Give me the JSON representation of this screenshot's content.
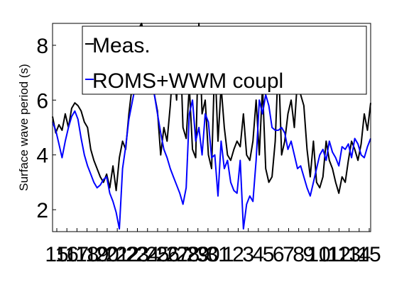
{
  "chart_data": {
    "type": "line",
    "title": "",
    "xlabel": "",
    "ylabel": "Surface wave period (s)",
    "ylim": [
      1.2,
      8.8
    ],
    "xlim": [
      0,
      100
    ],
    "yticks": [
      2,
      4,
      6,
      8
    ],
    "x_tick_labels": [
      "15",
      "16",
      "17",
      "18",
      "19",
      "20",
      "21",
      "22",
      "23",
      "24",
      "25",
      "26",
      "27",
      "28",
      "29",
      "30",
      "31",
      "1",
      "2",
      "3",
      "4",
      "5",
      "6",
      "7",
      "8",
      "9",
      "10",
      "11",
      "12",
      "13",
      "14",
      "15"
    ],
    "legend": {
      "position": "top",
      "entries": [
        "Meas.",
        "ROMS+WWM coupl"
      ]
    },
    "grid": false,
    "series": [
      {
        "name": "Meas.",
        "color": "#000000",
        "x": [
          0,
          1,
          2,
          3,
          4,
          5,
          6,
          7,
          8,
          9,
          10,
          11,
          12,
          13,
          14,
          15,
          16,
          17,
          18,
          19,
          20,
          21,
          22,
          23,
          24,
          25,
          26,
          27,
          28,
          29,
          30,
          31,
          32,
          33,
          34,
          35,
          36,
          37,
          38,
          39,
          40,
          41,
          42,
          43,
          44,
          45,
          46,
          47,
          48,
          49,
          50,
          51,
          52,
          53,
          54,
          55,
          56,
          57,
          58,
          59,
          60,
          61,
          62,
          63,
          64,
          65,
          66,
          67,
          68,
          69,
          70,
          71,
          72,
          73,
          74,
          75,
          76,
          77,
          78,
          79,
          80,
          81,
          82,
          83,
          84,
          85,
          86,
          87,
          88,
          89,
          90,
          91,
          92,
          93,
          94,
          95,
          96,
          97,
          98,
          99,
          100
        ],
        "values": [
          5.4,
          4.8,
          5.1,
          4.9,
          5.5,
          5.0,
          5.7,
          5.9,
          5.8,
          5.6,
          5.2,
          5.0,
          4.2,
          3.8,
          3.5,
          3.2,
          3.0,
          3.3,
          2.8,
          3.6,
          2.7,
          3.9,
          4.5,
          4.2,
          5.5,
          6.5,
          7.5,
          8.6,
          8.8,
          8.2,
          7.8,
          7.0,
          6.2,
          5.6,
          4.0,
          5.0,
          4.5,
          5.8,
          7.5,
          6.0,
          8.5,
          5.0,
          4.6,
          6.5,
          4.2,
          3.9,
          8.8,
          5.5,
          6.0,
          4.0,
          3.5,
          7.5,
          4.5,
          6.5,
          5.0,
          4.0,
          3.8,
          4.2,
          4.5,
          4.3,
          5.5,
          4.0,
          3.8,
          4.5,
          6.0,
          4.0,
          6.5,
          3.5,
          3.0,
          3.2,
          4.5,
          7.5,
          4.0,
          4.5,
          5.5,
          6.0,
          5.0,
          6.8,
          6.2,
          5.8,
          4.2,
          3.2,
          4.5,
          3.0,
          2.8,
          3.2,
          4.5,
          3.8,
          3.5,
          3.0,
          2.6,
          3.2,
          3.0,
          3.8,
          4.5,
          4.2,
          3.8,
          4.4,
          5.5,
          4.9,
          5.9
        ]
      },
      {
        "name": "ROMS+WWM coupl",
        "color": "#0000ff",
        "x": [
          0,
          1,
          2,
          3,
          4,
          5,
          6,
          7,
          8,
          9,
          10,
          11,
          12,
          13,
          14,
          15,
          16,
          17,
          18,
          19,
          20,
          21,
          22,
          23,
          24,
          25,
          26,
          27,
          28,
          29,
          30,
          31,
          32,
          33,
          34,
          35,
          36,
          37,
          38,
          39,
          40,
          41,
          42,
          43,
          44,
          45,
          46,
          47,
          48,
          49,
          50,
          51,
          52,
          53,
          54,
          55,
          56,
          57,
          58,
          59,
          60,
          61,
          62,
          63,
          64,
          65,
          66,
          67,
          68,
          69,
          70,
          71,
          72,
          73,
          74,
          75,
          76,
          77,
          78,
          79,
          80,
          81,
          82,
          83,
          84,
          85,
          86,
          87,
          88,
          89,
          90,
          91,
          92,
          93,
          94,
          95,
          96,
          97,
          98,
          99,
          100
        ],
        "values": [
          5.2,
          4.9,
          4.4,
          3.9,
          4.5,
          5.0,
          5.4,
          5.6,
          5.3,
          4.6,
          4.0,
          3.6,
          3.3,
          3.0,
          2.8,
          2.9,
          3.1,
          3.2,
          2.6,
          2.3,
          1.9,
          1.3,
          3.5,
          4.3,
          5.3,
          5.9,
          6.5,
          7.0,
          7.3,
          7.1,
          6.8,
          6.6,
          6.2,
          5.5,
          4.8,
          4.2,
          3.9,
          3.5,
          3.2,
          2.9,
          2.6,
          2.2,
          2.8,
          5.5,
          6.0,
          4.5,
          5.0,
          4.0,
          5.5,
          5.2,
          3.9,
          4.0,
          2.5,
          4.5,
          3.5,
          3.8,
          3.0,
          2.7,
          2.6,
          3.8,
          1.3,
          2.2,
          2.5,
          2.3,
          3.8,
          6.0,
          5.5,
          6.2,
          5.8,
          5.0,
          4.9,
          4.9,
          5.0,
          4.8,
          4.2,
          4.5,
          4.0,
          3.5,
          3.6,
          3.2,
          2.8,
          2.5,
          3.0,
          3.5,
          4.0,
          4.2,
          3.8,
          4.5,
          4.1,
          3.9,
          3.6,
          4.3,
          4.2,
          4.4,
          3.9,
          4.6,
          4.4,
          4.0,
          3.9,
          4.3,
          4.6
        ]
      }
    ]
  }
}
